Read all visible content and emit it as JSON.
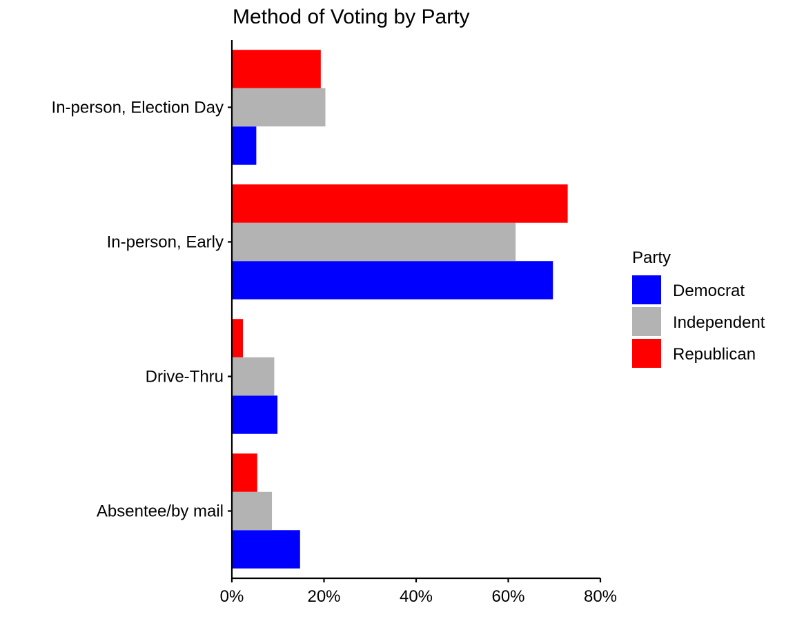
{
  "chart_data": {
    "type": "bar",
    "orientation": "horizontal",
    "title": "Method of Voting by Party",
    "xlabel": "",
    "ylabel": "",
    "categories": [
      "In-person, Election Day",
      "In-person, Early",
      "Drive-Thru",
      "Absentee/by mail"
    ],
    "series": [
      {
        "name": "Democrat",
        "color": "#0000ff",
        "values": [
          5.3,
          69.7,
          9.9,
          14.8
        ]
      },
      {
        "name": "Independent",
        "color": "#b3b3b3",
        "values": [
          20.3,
          61.6,
          9.2,
          8.7
        ]
      },
      {
        "name": "Republican",
        "color": "#ff0000",
        "values": [
          19.3,
          72.9,
          2.4,
          5.5
        ]
      }
    ],
    "xlim": [
      0,
      80
    ],
    "x_ticks": [
      0,
      20,
      40,
      60,
      80
    ],
    "x_tick_labels": [
      "0%",
      "20%",
      "40%",
      "60%",
      "80%"
    ],
    "grid": false,
    "legend": {
      "title": "Party",
      "position": "right"
    }
  }
}
